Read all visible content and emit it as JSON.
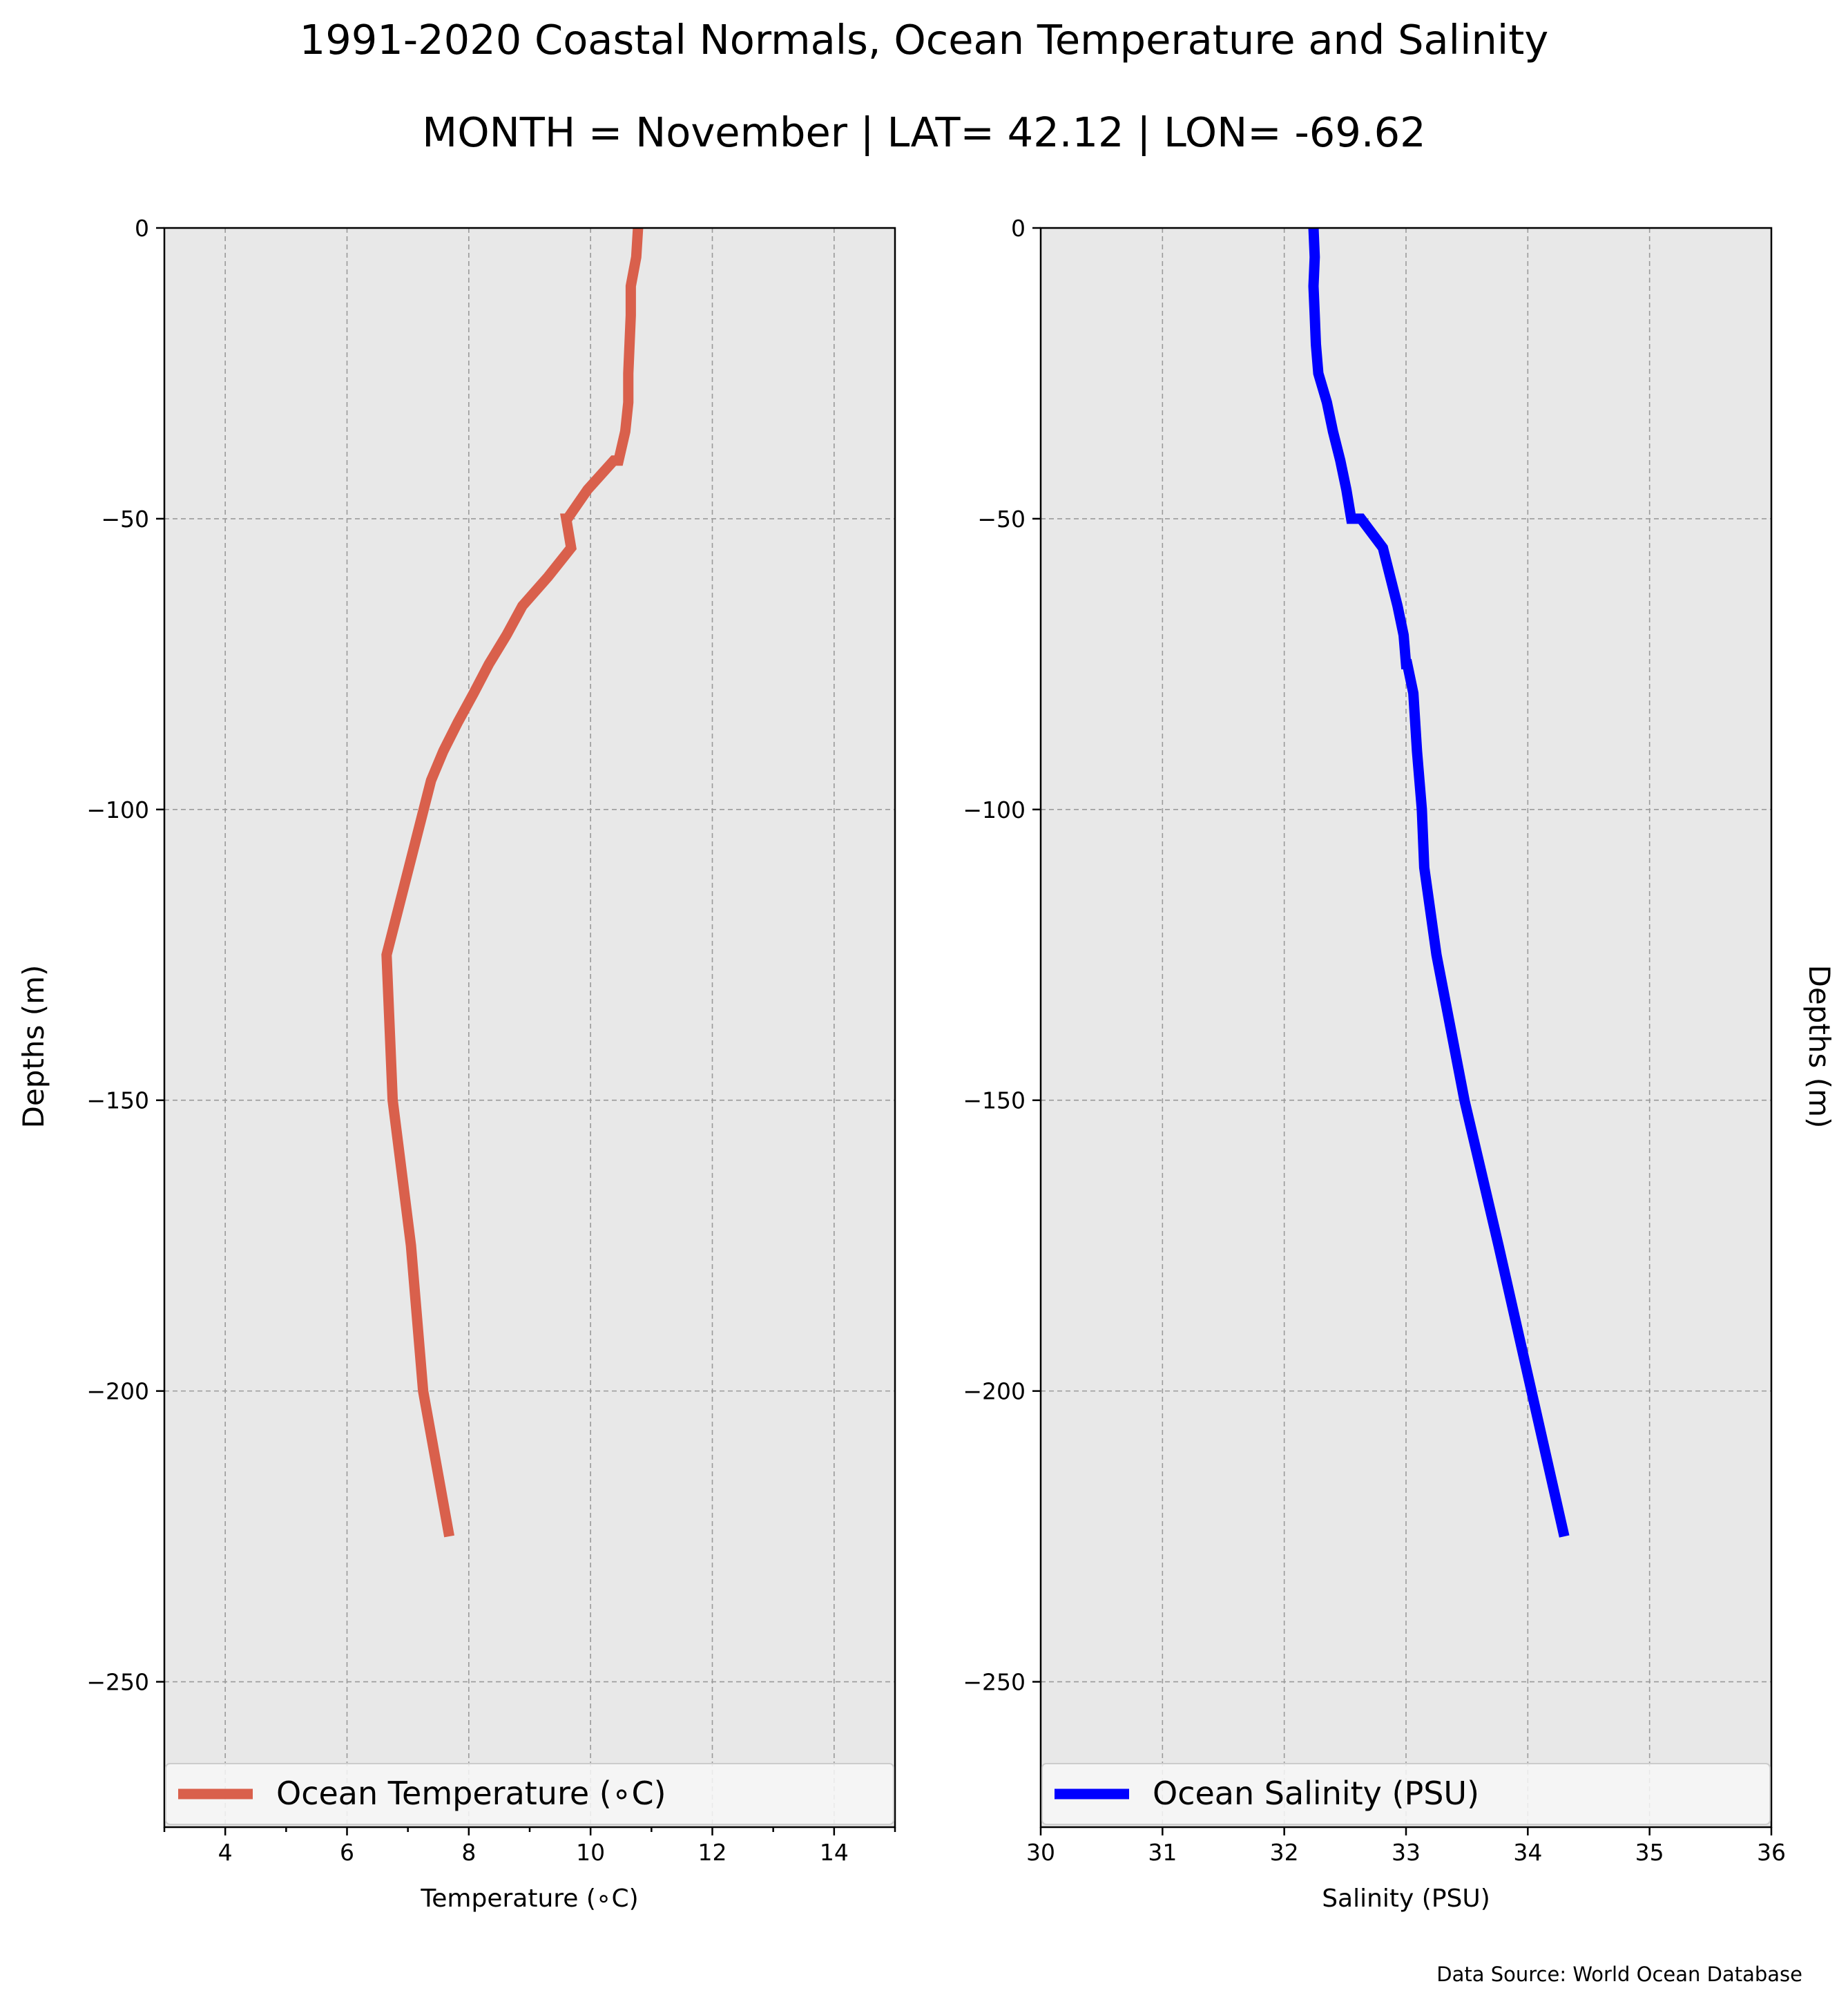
{
  "title": "1991-2020 Coastal Normals, Ocean Temperature and Salinity",
  "subtitle": "MONTH = November | LAT= 42.12 | LON= -69.62",
  "source": "Data Source: World Ocean Database",
  "chart_data": [
    {
      "type": "line",
      "xlabel": "Temperature (∘C)",
      "ylabel": "Depths (m)",
      "xlim": [
        3,
        15
      ],
      "ylim": [
        -275,
        0
      ],
      "xticks": [
        4,
        6,
        8,
        10,
        12,
        14
      ],
      "xminor": [
        3,
        5,
        7,
        9,
        11,
        13,
        15
      ],
      "yticks": [
        0,
        -50,
        -100,
        -150,
        -200,
        -250
      ],
      "tick_labels_x": [
        "4",
        "6",
        "8",
        "10",
        "12",
        "14"
      ],
      "tick_labels_y": [
        "0",
        "−50",
        "−100",
        "−150",
        "−200",
        "−250"
      ],
      "grid": true,
      "legend_position": "bottom",
      "series": [
        {
          "name": "Ocean Temperature (∘C)",
          "color": "#d9604c",
          "x": [
            10.78,
            10.75,
            10.66,
            10.66,
            10.64,
            10.62,
            10.62,
            10.57,
            10.46,
            10.38,
            9.95,
            9.62,
            9.6,
            9.68,
            9.3,
            8.88,
            8.62,
            8.33,
            8.08,
            7.82,
            7.58,
            7.38,
            6.65,
            6.75,
            7.05,
            7.25,
            7.68
          ],
          "y": [
            0,
            -5,
            -10,
            -15,
            -20,
            -25,
            -30,
            -35,
            -40,
            -40,
            -45,
            -50,
            -50,
            -55,
            -60,
            -65,
            -70,
            -75,
            -80,
            -85,
            -90,
            -95,
            -125,
            -150,
            -175,
            -200,
            -225
          ]
        }
      ]
    },
    {
      "type": "line",
      "xlabel": "Salinity (PSU)",
      "ylabel": "Depths (m)",
      "xlim": [
        30,
        36
      ],
      "ylim": [
        -275,
        0
      ],
      "xticks": [
        30,
        31,
        32,
        33,
        34,
        35,
        36
      ],
      "yticks": [
        0,
        -50,
        -100,
        -150,
        -200,
        -250
      ],
      "tick_labels_x": [
        "30",
        "31",
        "32",
        "33",
        "34",
        "35",
        "36"
      ],
      "tick_labels_y": [
        "0",
        "−50",
        "−100",
        "−150",
        "−200",
        "−250"
      ],
      "grid": true,
      "legend_position": "bottom",
      "series": [
        {
          "name": "Ocean Salinity (PSU)",
          "color": "#0000ff",
          "x": [
            32.24,
            32.25,
            32.24,
            32.25,
            32.26,
            32.28,
            32.35,
            32.4,
            32.46,
            32.51,
            32.55,
            32.63,
            32.81,
            32.87,
            32.93,
            32.98,
            33.0,
            33.01,
            33.06,
            33.09,
            33.13,
            33.15,
            33.25,
            33.48,
            33.76,
            34.03,
            34.3
          ],
          "y": [
            0,
            -5,
            -10,
            -15,
            -20,
            -25,
            -30,
            -35,
            -40,
            -45,
            -50,
            -50,
            -55,
            -60,
            -65,
            -70,
            -75,
            -75,
            -80,
            -90,
            -100,
            -110,
            -125,
            -150,
            -175,
            -200,
            -225
          ]
        }
      ]
    }
  ]
}
